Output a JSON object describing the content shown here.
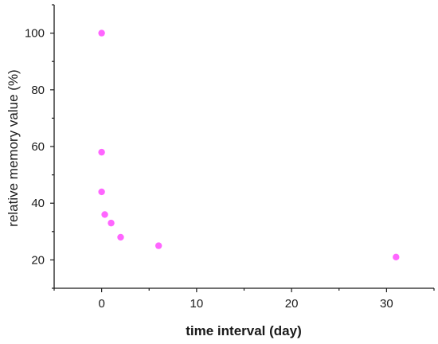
{
  "chart_data": {
    "type": "scatter",
    "title": "",
    "xlabel": "time interval (day)",
    "ylabel": "relative memory value (%)",
    "xlim": [
      -5,
      35
    ],
    "ylim": [
      10,
      110
    ],
    "xticks": [
      0,
      10,
      20,
      30
    ],
    "yticks": [
      20,
      40,
      60,
      80,
      100
    ],
    "grid": false,
    "legend": "none",
    "marker_color": "#ff66ff",
    "series": [
      {
        "points": [
          {
            "x": 0,
            "y": 100
          },
          {
            "x": 0,
            "y": 58
          },
          {
            "x": 0,
            "y": 44
          },
          {
            "x": 0.33,
            "y": 36
          },
          {
            "x": 1,
            "y": 33
          },
          {
            "x": 2,
            "y": 28
          },
          {
            "x": 6,
            "y": 25
          },
          {
            "x": 31,
            "y": 21
          }
        ]
      }
    ]
  }
}
